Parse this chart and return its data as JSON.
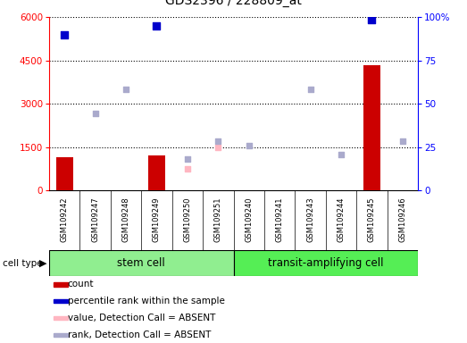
{
  "title": "GDS2396 / 228809_at",
  "samples": [
    "GSM109242",
    "GSM109247",
    "GSM109248",
    "GSM109249",
    "GSM109250",
    "GSM109251",
    "GSM109240",
    "GSM109241",
    "GSM109243",
    "GSM109244",
    "GSM109245",
    "GSM109246"
  ],
  "count_values": [
    1150,
    0,
    0,
    1200,
    0,
    0,
    0,
    0,
    0,
    0,
    4350,
    0
  ],
  "percentile_rank": [
    5400,
    null,
    null,
    5700,
    null,
    null,
    null,
    null,
    null,
    null,
    5900,
    null
  ],
  "value_absent": [
    null,
    null,
    null,
    null,
    750,
    1500,
    null,
    null,
    null,
    null,
    null,
    null
  ],
  "rank_absent": [
    null,
    2650,
    3500,
    null,
    1100,
    1700,
    1550,
    null,
    3500,
    1250,
    null,
    1700
  ],
  "ylim_left": [
    0,
    6000
  ],
  "ylim_right": [
    0,
    100
  ],
  "yticks_left": [
    0,
    1500,
    3000,
    4500,
    6000
  ],
  "yticks_right": [
    0,
    25,
    50,
    75,
    100
  ],
  "bar_color": "#CC0000",
  "dot_blue_dark": "#0000CC",
  "dot_pink": "#FFB6C1",
  "dot_blue_light": "#AAAACC",
  "stem_color": "#90EE90",
  "transit_color": "#55EE55",
  "legend_items": [
    {
      "color": "#CC0000",
      "label": "count"
    },
    {
      "color": "#0000CC",
      "label": "percentile rank within the sample"
    },
    {
      "color": "#FFB6C1",
      "label": "value, Detection Call = ABSENT"
    },
    {
      "color": "#AAAACC",
      "label": "rank, Detection Call = ABSENT"
    }
  ],
  "background_color": "#ffffff"
}
